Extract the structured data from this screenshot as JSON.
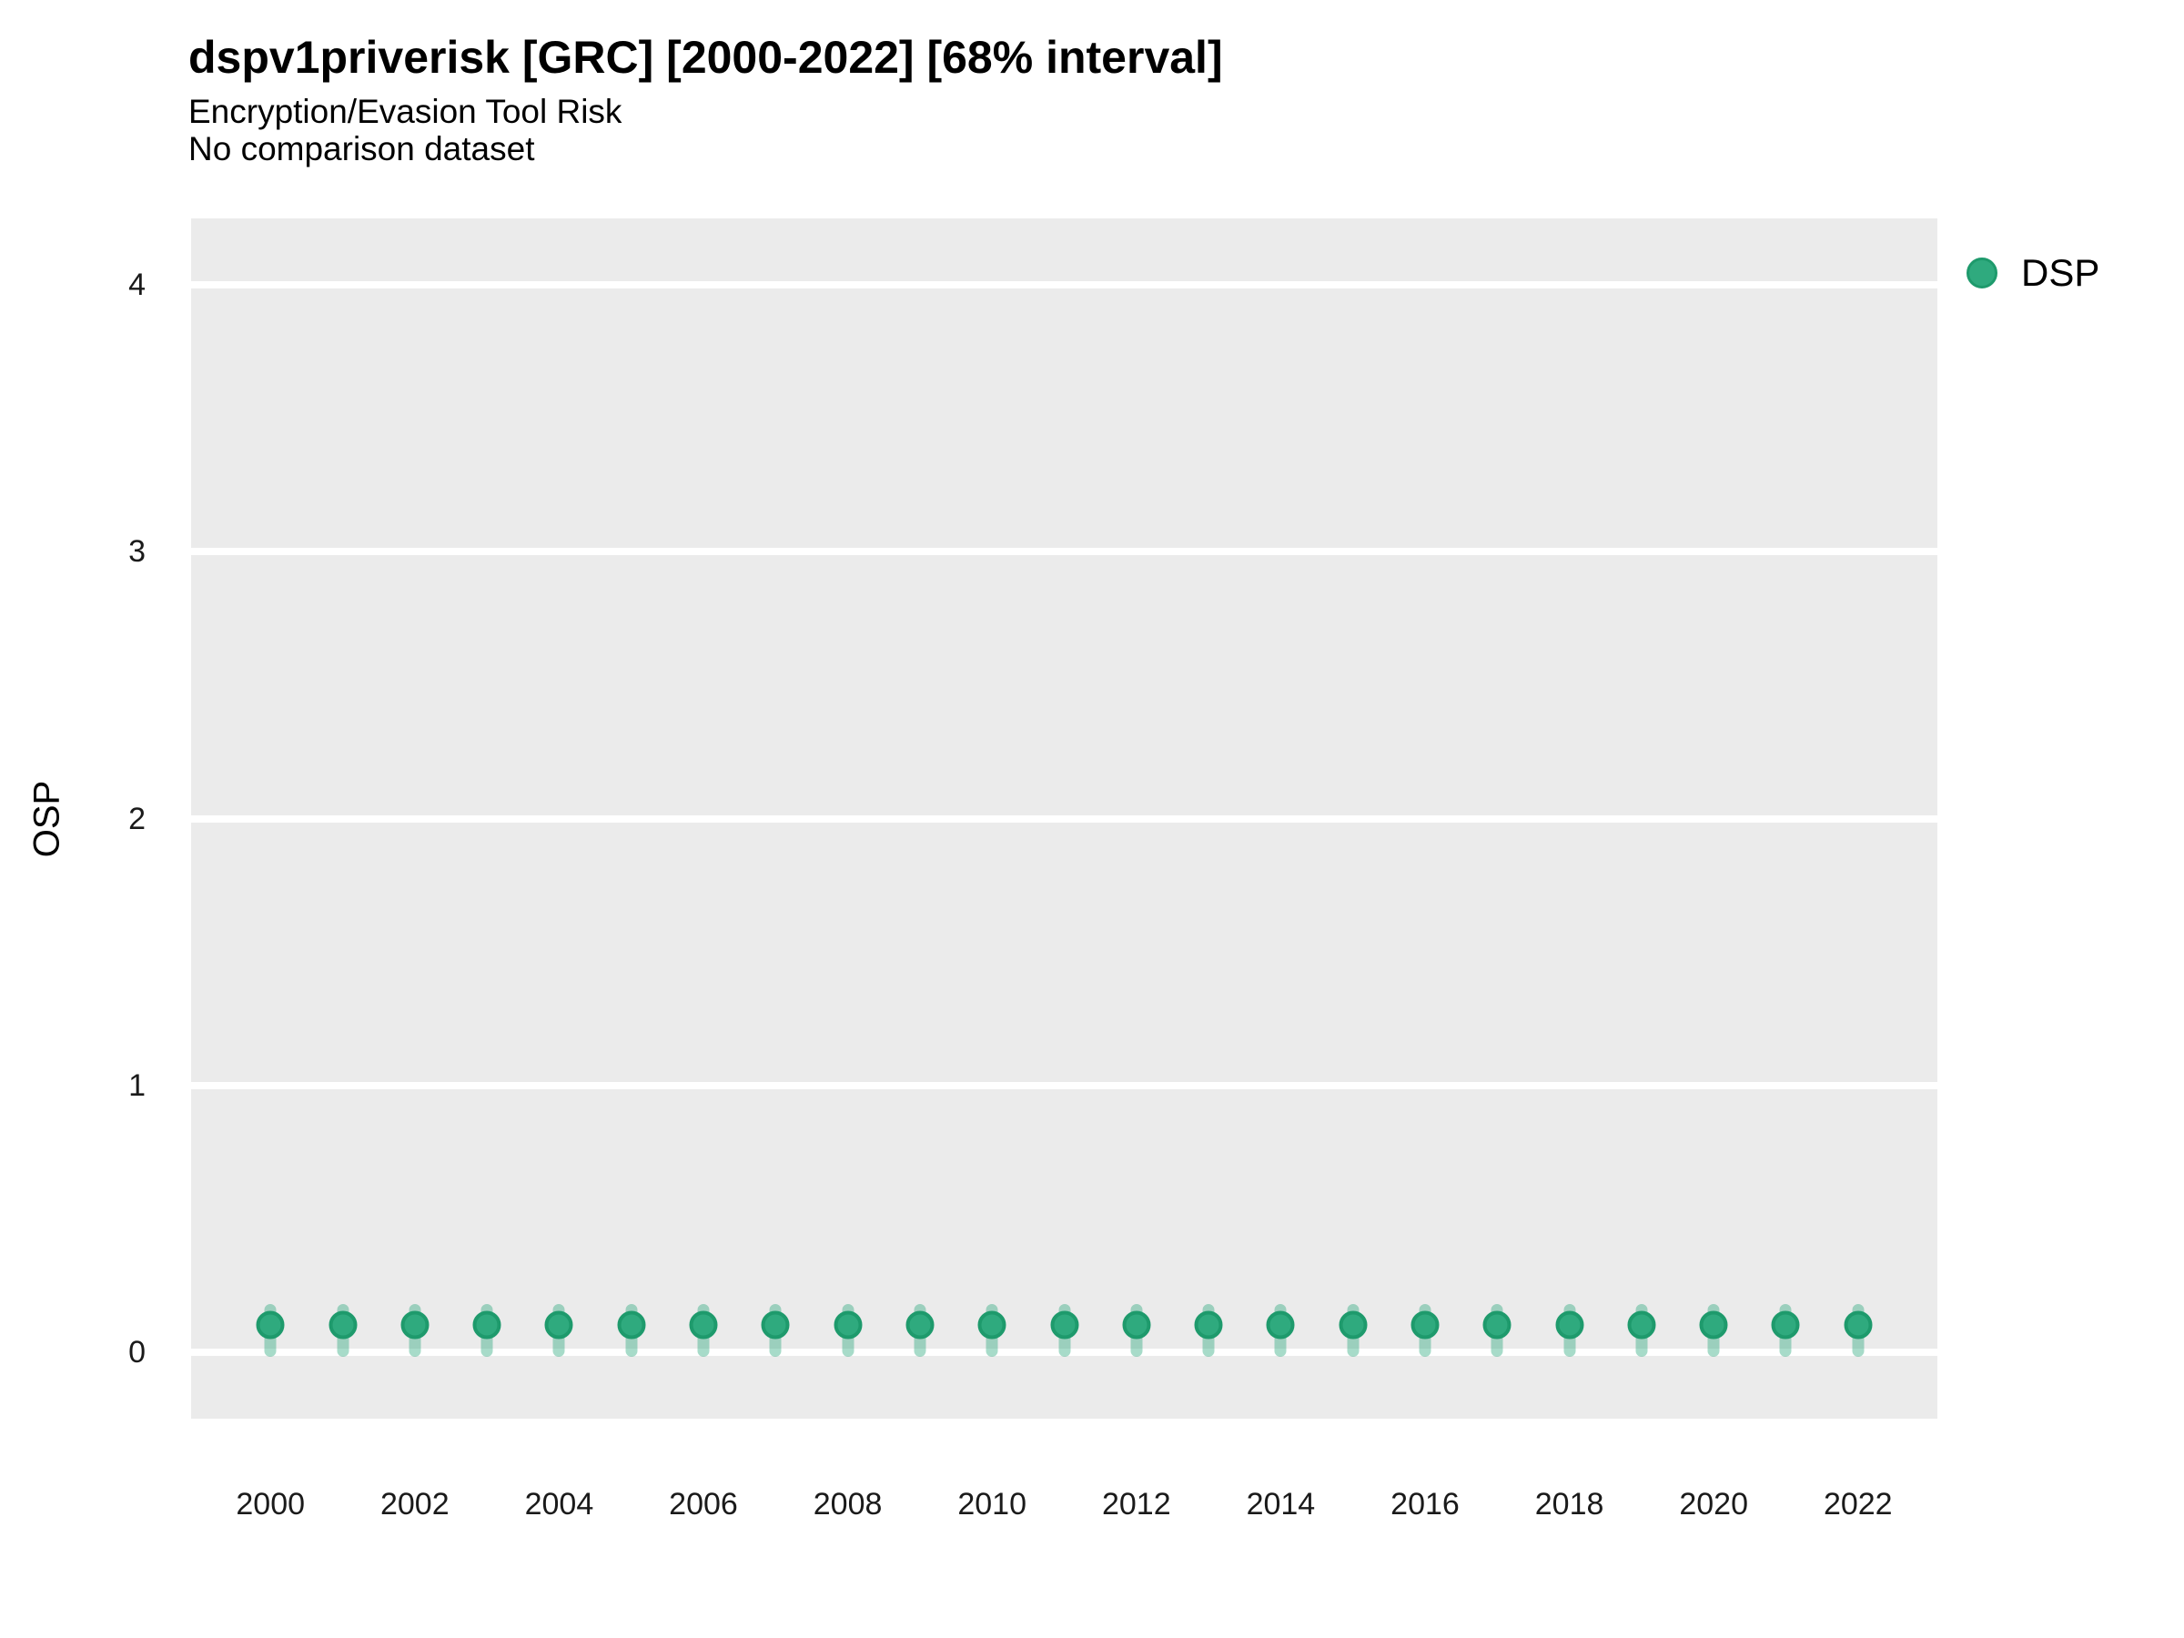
{
  "header": {
    "title": "dspv1priverisk [GRC] [2000-2022] [68% interval]",
    "subtitle": "Encryption/Evasion Tool Risk",
    "note": "No comparison dataset"
  },
  "legend": {
    "position": "right-top",
    "items": [
      {
        "label": "DSP",
        "color": "#2FAA7E"
      }
    ]
  },
  "chart_data": {
    "type": "scatter",
    "title": "dspv1priverisk [GRC] [2000-2022] [68% interval]",
    "subtitle": "Encryption/Evasion Tool Risk",
    "note": "No comparison dataset",
    "xlabel": "",
    "ylabel": "OSP",
    "interval_level": "68%",
    "x": [
      2000,
      2001,
      2002,
      2003,
      2004,
      2005,
      2006,
      2007,
      2008,
      2009,
      2010,
      2011,
      2012,
      2013,
      2014,
      2015,
      2016,
      2017,
      2018,
      2019,
      2020,
      2021,
      2022
    ],
    "series": [
      {
        "name": "DSP",
        "values": [
          0.1,
          0.1,
          0.1,
          0.1,
          0.1,
          0.1,
          0.1,
          0.1,
          0.1,
          0.1,
          0.1,
          0.1,
          0.1,
          0.1,
          0.1,
          0.1,
          0.1,
          0.1,
          0.1,
          0.1,
          0.1,
          0.1,
          0.1
        ],
        "interval_low": [
          0.0,
          0.0,
          0.0,
          0.0,
          0.0,
          0.0,
          0.0,
          0.0,
          0.0,
          0.0,
          0.0,
          0.0,
          0.0,
          0.0,
          0.0,
          0.0,
          0.0,
          0.0,
          0.0,
          0.0,
          0.0,
          0.0,
          0.0
        ],
        "interval_high": [
          0.18,
          0.18,
          0.18,
          0.18,
          0.18,
          0.18,
          0.18,
          0.18,
          0.18,
          0.18,
          0.18,
          0.18,
          0.18,
          0.18,
          0.18,
          0.18,
          0.18,
          0.18,
          0.18,
          0.18,
          0.18,
          0.18,
          0.18
        ]
      }
    ],
    "x_ticks": [
      2000,
      2002,
      2004,
      2006,
      2008,
      2010,
      2012,
      2014,
      2016,
      2018,
      2020,
      2022
    ],
    "y_ticks": [
      0,
      1,
      2,
      3,
      4
    ],
    "xlim": [
      1998.9,
      2023.1
    ],
    "ylim": [
      -0.25,
      4.25
    ],
    "grid": "major-horizontal-only",
    "legend_position": "right-top",
    "colors": {
      "point_fill": "#2FAA7E",
      "point_stroke": "#1E9A6C",
      "interval_bar": "rgba(46, 170, 126, 0.42)",
      "panel_background": "#EBEBEB",
      "gridline": "#FFFFFF"
    }
  }
}
